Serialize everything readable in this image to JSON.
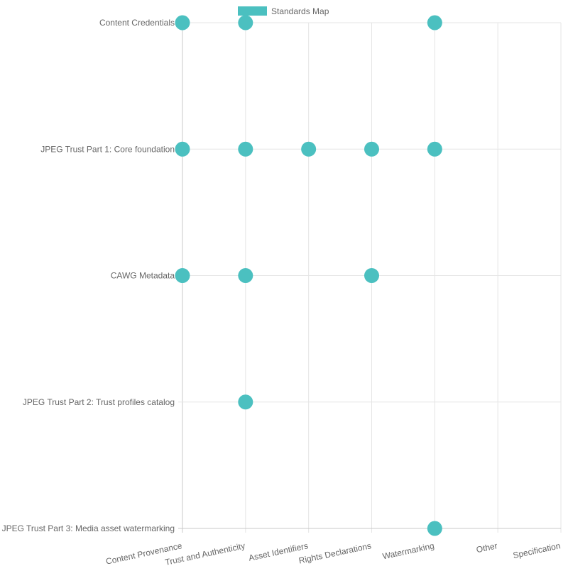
{
  "chart_data": {
    "type": "scatter",
    "title": "",
    "xlabel": "",
    "ylabel": "",
    "legend": {
      "position": "top-center",
      "label": "Standards Map"
    },
    "categories_x": [
      "Content Provenance",
      "Trust and Authenticity",
      "Asset Identifiers",
      "Rights Declarations",
      "Watermarking",
      "Other",
      "Specification"
    ],
    "categories_y": [
      "Content Credentials",
      "JPEG Trust Part 1: Core foundation",
      "CAWG Metadata",
      "JPEG Trust Part 2: Trust profiles catalog",
      "JPEG Trust Part 3: Media asset watermarking"
    ],
    "series": [
      {
        "name": "Standards Map",
        "color": "#4bc0c0",
        "points": [
          {
            "x": "Content Provenance",
            "y": "Content Credentials"
          },
          {
            "x": "Trust and Authenticity",
            "y": "Content Credentials"
          },
          {
            "x": "Watermarking",
            "y": "Content Credentials"
          },
          {
            "x": "Content Provenance",
            "y": "JPEG Trust Part 1: Core foundation"
          },
          {
            "x": "Trust and Authenticity",
            "y": "JPEG Trust Part 1: Core foundation"
          },
          {
            "x": "Asset Identifiers",
            "y": "JPEG Trust Part 1: Core foundation"
          },
          {
            "x": "Rights Declarations",
            "y": "JPEG Trust Part 1: Core foundation"
          },
          {
            "x": "Watermarking",
            "y": "JPEG Trust Part 1: Core foundation"
          },
          {
            "x": "Content Provenance",
            "y": "CAWG Metadata"
          },
          {
            "x": "Trust and Authenticity",
            "y": "CAWG Metadata"
          },
          {
            "x": "Rights Declarations",
            "y": "CAWG Metadata"
          },
          {
            "x": "Trust and Authenticity",
            "y": "JPEG Trust Part 2: Trust profiles catalog"
          },
          {
            "x": "Watermarking",
            "y": "JPEG Trust Part 3: Media asset watermarking"
          }
        ]
      }
    ],
    "grid": true,
    "colors": {
      "point": "#4bc0c0",
      "grid": "#e5e5e5",
      "axis": "#c8c8c8",
      "text": "#666666"
    }
  }
}
